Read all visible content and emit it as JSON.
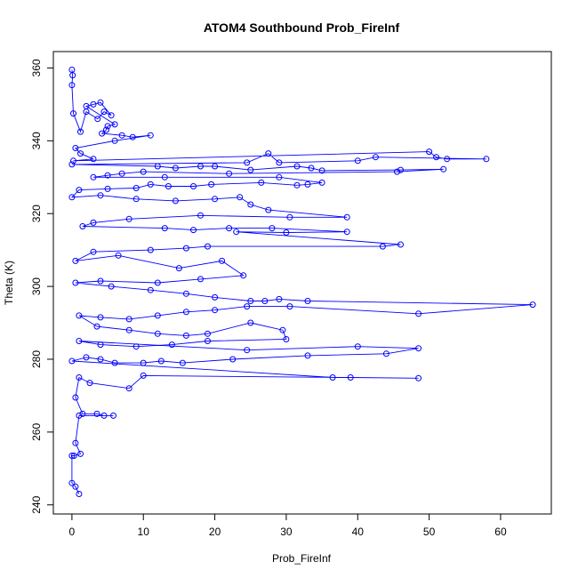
{
  "chart_data": {
    "type": "line",
    "title": "ATOM4 Southbound Prob_FireInf",
    "xlabel": "Prob_FireInf",
    "ylabel": "Theta (K)",
    "xlim": [
      -2.6,
      67.1
    ],
    "ylim": [
      237.5,
      364.5
    ],
    "x_ticks": [
      0,
      10,
      20,
      30,
      40,
      50,
      60
    ],
    "y_ticks": [
      240,
      260,
      280,
      300,
      320,
      340,
      360
    ],
    "grid": false,
    "legend": "none",
    "marker": "open-circle",
    "color": "#0000ff",
    "series": [
      {
        "values": [
          [
            0.0,
            359.5
          ],
          [
            0.1,
            358.0
          ],
          [
            0.0,
            355.3
          ],
          [
            0.2,
            347.5
          ],
          [
            1.2,
            342.5
          ],
          [
            2.0,
            348.0
          ],
          [
            3.6,
            346.0
          ],
          [
            4.5,
            348.0
          ],
          [
            5.5,
            347.0
          ],
          [
            4.0,
            350.5
          ],
          [
            3.0,
            350.0
          ],
          [
            2.0,
            349.5
          ],
          [
            6.0,
            344.5
          ],
          [
            5.0,
            344.0
          ],
          [
            4.8,
            343.0
          ],
          [
            4.2,
            342.0
          ],
          [
            7.0,
            341.5
          ],
          [
            8.5,
            341.0
          ],
          [
            11.0,
            341.5
          ],
          [
            6.0,
            340.0
          ],
          [
            0.5,
            338.0
          ],
          [
            1.2,
            336.5
          ],
          [
            3.0,
            335.0
          ],
          [
            0.2,
            334.5
          ],
          [
            50.0,
            337.0
          ],
          [
            51.0,
            335.5
          ],
          [
            52.5,
            335.0
          ],
          [
            58.0,
            335.0
          ],
          [
            42.5,
            335.5
          ],
          [
            40.0,
            334.5
          ],
          [
            29.0,
            334.0
          ],
          [
            27.5,
            336.5
          ],
          [
            24.5,
            334.0
          ],
          [
            0.0,
            333.5
          ],
          [
            12.0,
            333.0
          ],
          [
            14.5,
            332.5
          ],
          [
            18.0,
            333.0
          ],
          [
            20.0,
            333.0
          ],
          [
            25.0,
            332.0
          ],
          [
            31.5,
            333.0
          ],
          [
            33.5,
            332.5
          ],
          [
            35.0,
            331.8
          ],
          [
            46.0,
            332.0
          ],
          [
            52.0,
            332.2
          ],
          [
            45.5,
            331.5
          ],
          [
            22.0,
            331.0
          ],
          [
            10.0,
            331.5
          ],
          [
            7.0,
            331.0
          ],
          [
            5.0,
            330.5
          ],
          [
            3.0,
            330.0
          ],
          [
            13.0,
            330.0
          ],
          [
            29.0,
            330.0
          ],
          [
            35.0,
            328.5
          ],
          [
            33.0,
            328.0
          ],
          [
            31.5,
            327.8
          ],
          [
            26.5,
            328.5
          ],
          [
            19.5,
            328.0
          ],
          [
            17.0,
            327.5
          ],
          [
            13.5,
            327.5
          ],
          [
            11.0,
            328.0
          ],
          [
            9.0,
            327.0
          ],
          [
            5.0,
            326.8
          ],
          [
            1.0,
            326.5
          ],
          [
            0.0,
            324.5
          ],
          [
            4.0,
            325.0
          ],
          [
            9.0,
            324.0
          ],
          [
            14.5,
            323.5
          ],
          [
            20.0,
            324.0
          ],
          [
            23.5,
            324.5
          ],
          [
            25.0,
            322.5
          ],
          [
            27.5,
            321.0
          ],
          [
            38.5,
            319.0
          ],
          [
            30.5,
            319.0
          ],
          [
            18.0,
            319.5
          ],
          [
            8.0,
            318.5
          ],
          [
            3.0,
            317.5
          ],
          [
            1.5,
            316.5
          ],
          [
            13.0,
            316.0
          ],
          [
            17.0,
            315.5
          ],
          [
            22.0,
            316.0
          ],
          [
            28.0,
            316.0
          ],
          [
            38.5,
            315.0
          ],
          [
            30.0,
            314.8
          ],
          [
            23.0,
            315.0
          ],
          [
            46.0,
            311.5
          ],
          [
            43.5,
            311.0
          ],
          [
            19.0,
            311.0
          ],
          [
            16.0,
            310.5
          ],
          [
            11.0,
            310.0
          ],
          [
            3.0,
            309.5
          ],
          [
            0.5,
            307.0
          ],
          [
            6.5,
            308.5
          ],
          [
            15.0,
            305.0
          ],
          [
            21.0,
            307.0
          ],
          [
            24.0,
            303.0
          ],
          [
            18.0,
            302.0
          ],
          [
            12.0,
            301.0
          ],
          [
            4.0,
            301.5
          ],
          [
            0.5,
            301.0
          ],
          [
            5.5,
            300.0
          ],
          [
            11.0,
            299.0
          ],
          [
            16.0,
            298.0
          ],
          [
            20.0,
            297.0
          ],
          [
            25.0,
            296.0
          ],
          [
            27.0,
            296.0
          ],
          [
            29.0,
            296.5
          ],
          [
            33.0,
            296.0
          ],
          [
            64.5,
            295.0
          ],
          [
            48.5,
            292.5
          ],
          [
            30.5,
            294.5
          ],
          [
            24.5,
            294.5
          ],
          [
            20.0,
            293.5
          ],
          [
            16.0,
            293.0
          ],
          [
            12.0,
            292.0
          ],
          [
            8.0,
            291.0
          ],
          [
            4.0,
            291.5
          ],
          [
            1.0,
            292.0
          ],
          [
            3.5,
            289.0
          ],
          [
            8.0,
            288.0
          ],
          [
            12.0,
            287.0
          ],
          [
            16.0,
            286.5
          ],
          [
            19.0,
            287.0
          ],
          [
            25.0,
            290.0
          ],
          [
            29.5,
            288.0
          ],
          [
            30.0,
            285.5
          ],
          [
            19.0,
            285.0
          ],
          [
            14.0,
            284.0
          ],
          [
            9.0,
            283.5
          ],
          [
            4.0,
            284.0
          ],
          [
            1.0,
            285.0
          ],
          [
            24.5,
            282.5
          ],
          [
            40.0,
            283.5
          ],
          [
            48.5,
            283.0
          ],
          [
            44.0,
            281.5
          ],
          [
            33.0,
            281.0
          ],
          [
            22.5,
            280.0
          ],
          [
            15.5,
            279.0
          ],
          [
            12.5,
            279.5
          ],
          [
            10.0,
            279.0
          ],
          [
            6.0,
            279.0
          ],
          [
            4.0,
            280.0
          ],
          [
            2.0,
            280.5
          ],
          [
            0.0,
            279.5
          ],
          [
            36.5,
            275.0
          ],
          [
            39.0,
            275.0
          ],
          [
            48.5,
            274.8
          ],
          [
            10.0,
            275.5
          ],
          [
            8.0,
            272.0
          ],
          [
            2.5,
            273.5
          ],
          [
            1.0,
            275.0
          ],
          [
            0.5,
            269.5
          ],
          [
            1.5,
            265.0
          ],
          [
            3.5,
            265.0
          ],
          [
            4.5,
            264.5
          ],
          [
            5.8,
            264.5
          ],
          [
            1.0,
            264.5
          ],
          [
            0.5,
            257.0
          ],
          [
            1.2,
            254.0
          ],
          [
            0.3,
            253.5
          ],
          [
            0.0,
            253.5
          ],
          [
            0.0,
            246.0
          ],
          [
            0.5,
            245.0
          ],
          [
            1.0,
            243.0
          ]
        ]
      }
    ]
  }
}
